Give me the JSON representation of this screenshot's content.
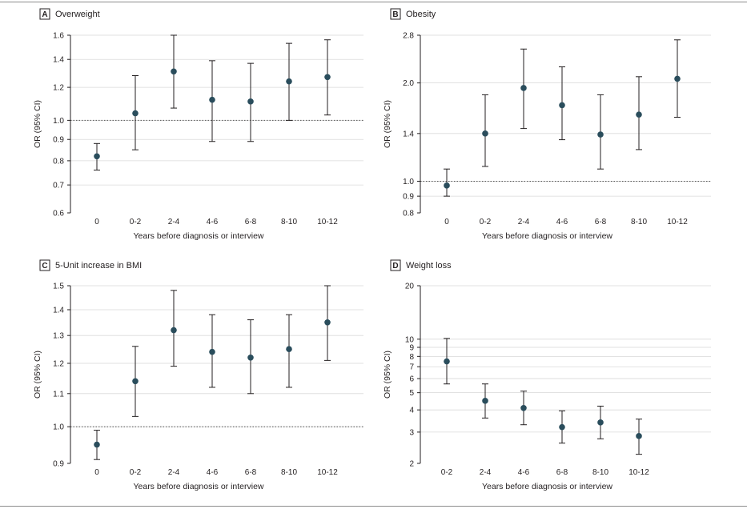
{
  "chart_data": [
    {
      "type": "scatter",
      "panel": "A",
      "title": "Overweight",
      "xlabel": "Years before diagnosis or interview",
      "ylabel": "OR (95% CI)",
      "yscale": "log",
      "ylim": [
        0.6,
        1.6
      ],
      "yticks": [
        0.6,
        0.7,
        0.8,
        0.9,
        1.0,
        1.2,
        1.4,
        1.6
      ],
      "ytick_labels": [
        "0.6",
        "0.7",
        "0.8",
        "0.9",
        "1.0",
        "1.2",
        "1.4",
        "1.6"
      ],
      "reference_line": 1.0,
      "categories": [
        "0",
        "0-2",
        "2-4",
        "4-6",
        "6-8",
        "8-10",
        "10-12"
      ],
      "values": [
        0.82,
        1.04,
        1.31,
        1.12,
        1.11,
        1.24,
        1.27
      ],
      "ci_low": [
        0.76,
        0.85,
        1.07,
        0.89,
        0.89,
        1.0,
        1.03
      ],
      "ci_high": [
        0.88,
        1.28,
        1.6,
        1.39,
        1.37,
        1.53,
        1.56
      ]
    },
    {
      "type": "scatter",
      "panel": "B",
      "title": "Obesity",
      "xlabel": "Years before diagnosis or interview",
      "ylabel": "OR (95% CI)",
      "yscale": "log",
      "ylim": [
        0.8,
        2.8
      ],
      "yticks": [
        0.8,
        0.9,
        1.0,
        1.4,
        2.0,
        2.8
      ],
      "ytick_labels": [
        "0.8",
        "0.9",
        "1.0",
        "1.4",
        "2.0",
        "2.8"
      ],
      "reference_line": 1.0,
      "categories": [
        "0",
        "0-2",
        "2-4",
        "4-6",
        "6-8",
        "8-10",
        "10-12"
      ],
      "values": [
        0.97,
        1.4,
        1.93,
        1.71,
        1.39,
        1.6,
        2.06
      ],
      "ci_low": [
        0.9,
        1.11,
        1.45,
        1.34,
        1.09,
        1.25,
        1.57
      ],
      "ci_high": [
        1.09,
        1.84,
        2.54,
        2.24,
        1.84,
        2.09,
        2.71
      ]
    },
    {
      "type": "scatter",
      "panel": "C",
      "title": "5-Unit increase in BMI",
      "xlabel": "Years before diagnosis or interview",
      "ylabel": "OR (95% CI)",
      "yscale": "log",
      "ylim": [
        0.9,
        1.5
      ],
      "yticks": [
        0.9,
        1.0,
        1.1,
        1.2,
        1.3,
        1.4,
        1.5
      ],
      "ytick_labels": [
        "0.9",
        "1.0",
        "1.1",
        "1.2",
        "1.3",
        "1.4",
        "1.5"
      ],
      "reference_line": 1.0,
      "categories": [
        "0",
        "0-2",
        "2-4",
        "4-6",
        "6-8",
        "8-10",
        "10-12"
      ],
      "values": [
        0.95,
        1.14,
        1.32,
        1.24,
        1.22,
        1.25,
        1.35
      ],
      "ci_low": [
        0.91,
        1.03,
        1.19,
        1.12,
        1.1,
        1.12,
        1.21
      ],
      "ci_high": [
        0.99,
        1.26,
        1.48,
        1.38,
        1.36,
        1.38,
        1.5
      ]
    },
    {
      "type": "scatter",
      "panel": "D",
      "title": "Weight loss",
      "xlabel": "Years before diagnosis or interview",
      "ylabel": "OR (95% CI)",
      "yscale": "log",
      "ylim": [
        2,
        20
      ],
      "yticks": [
        2,
        3,
        4,
        5,
        6,
        7,
        8,
        9,
        10,
        20
      ],
      "ytick_labels": [
        "2",
        "3",
        "4",
        "5",
        "6",
        "7",
        "8",
        "9",
        "10",
        "20"
      ],
      "categories": [
        "0-2",
        "2-4",
        "4-6",
        "6-8",
        "8-10",
        "10-12"
      ],
      "values": [
        7.5,
        4.5,
        4.1,
        3.2,
        3.4,
        2.85
      ],
      "ci_low": [
        5.6,
        3.6,
        3.3,
        2.6,
        2.75,
        2.25
      ],
      "ci_high": [
        10.1,
        5.6,
        5.1,
        3.95,
        4.2,
        3.55
      ]
    }
  ],
  "colors": {
    "point": "#2a4d5c",
    "line": "#231f20",
    "reference": "#555555",
    "grid": "#d9d9d9"
  }
}
